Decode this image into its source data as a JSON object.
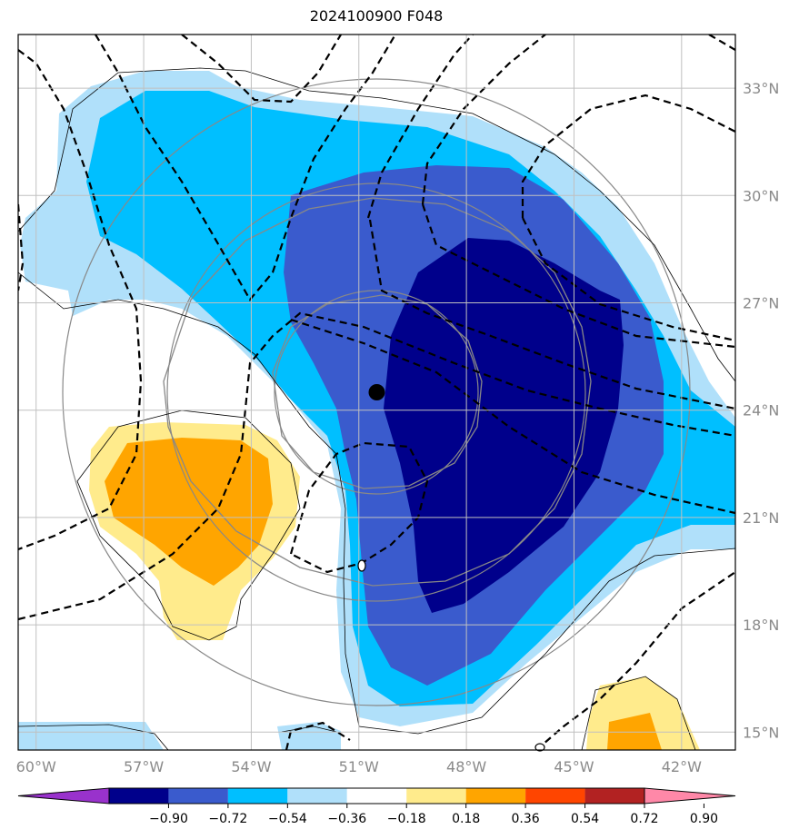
{
  "title": "2024100900 F048",
  "grid": {
    "lon_range": [
      -60.5,
      -40.5
    ],
    "lat_range": [
      14.5,
      34.5
    ],
    "lon_ticks": [
      {
        "value": -60,
        "label": "60°W"
      },
      {
        "value": -57,
        "label": "57°W"
      },
      {
        "value": -54,
        "label": "54°W"
      },
      {
        "value": -51,
        "label": "51°W"
      },
      {
        "value": -48,
        "label": "48°W"
      },
      {
        "value": -45,
        "label": "45°W"
      },
      {
        "value": -42,
        "label": "42°W"
      }
    ],
    "lat_ticks": [
      {
        "value": 15,
        "label": "15°N"
      },
      {
        "value": 18,
        "label": "18°N"
      },
      {
        "value": 21,
        "label": "21°N"
      },
      {
        "value": 24,
        "label": "24°N"
      },
      {
        "value": 27,
        "label": "27°N"
      },
      {
        "value": 30,
        "label": "30°N"
      },
      {
        "value": 33,
        "label": "33°N"
      }
    ]
  },
  "storm_center": {
    "lon": -50.5,
    "lat": 24.5
  },
  "contour_label": "0",
  "colorbar": {
    "colors": [
      "#9932cc",
      "#00008b",
      "#3a5bcd",
      "#00bfff",
      "#b0e0fa",
      "#ffffff",
      "#ffeb8c",
      "#ffa500",
      "#ff4500",
      "#b22222",
      "#ff88a8"
    ],
    "labels": [
      "−0.90",
      "−0.72",
      "−0.54",
      "−0.36",
      "−0.18",
      "0.18",
      "0.36",
      "0.54",
      "0.72",
      "0.90"
    ]
  },
  "colors": {
    "light_blue": "#b0e0fa",
    "sky_blue": "#00bfff",
    "royal_blue": "#3a5bcd",
    "navy": "#00008b",
    "light_yellow": "#ffeb8c",
    "orange": "#ffa500",
    "grid": "#c0c0c0"
  }
}
